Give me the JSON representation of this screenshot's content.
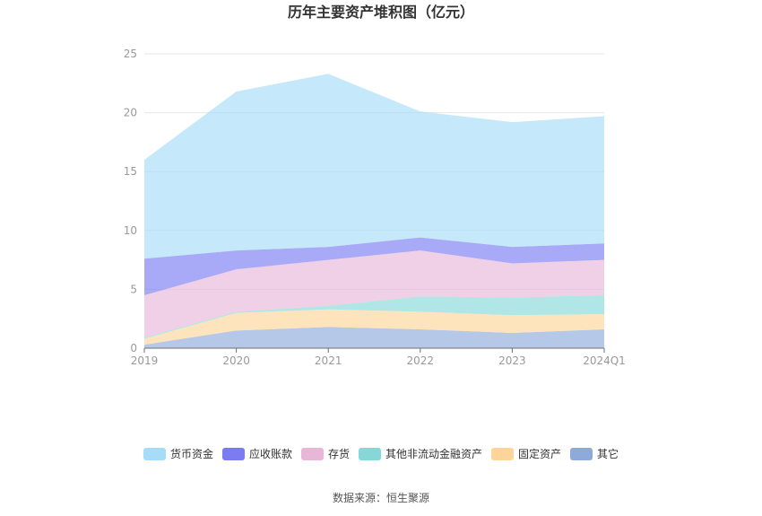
{
  "chart_data": {
    "type": "area",
    "stacked": true,
    "title": "历年主要资产堆积图（亿元）",
    "x": [
      "2019",
      "2020",
      "2021",
      "2022",
      "2023",
      "2024Q1"
    ],
    "ylim": [
      0,
      25
    ],
    "yticks": [
      "0",
      "5",
      "10",
      "15",
      "20",
      "25"
    ],
    "grid": true,
    "legend_position": "bottom",
    "series": [
      {
        "name": "其它",
        "color": "#8eaadb",
        "values": [
          0.3,
          1.5,
          1.8,
          1.6,
          1.3,
          1.6
        ]
      },
      {
        "name": "固定资产",
        "color": "#fdd59a",
        "values": [
          0.5,
          1.5,
          1.5,
          1.5,
          1.5,
          1.3
        ]
      },
      {
        "name": "其他非流动金融资产",
        "color": "#86d8d8",
        "values": [
          0.1,
          0.1,
          0.3,
          1.3,
          1.5,
          1.6
        ]
      },
      {
        "name": "存货",
        "color": "#e8b7d8",
        "values": [
          3.6,
          3.6,
          3.9,
          3.9,
          2.9,
          3.0
        ]
      },
      {
        "name": "应收账款",
        "color": "#7b7cf2",
        "values": [
          3.1,
          1.6,
          1.1,
          1.1,
          1.4,
          1.4
        ]
      },
      {
        "name": "货币资金",
        "color": "#a6dcf7",
        "values": [
          8.4,
          13.5,
          14.7,
          10.7,
          10.6,
          10.8
        ]
      }
    ],
    "legend_order": [
      "货币资金",
      "应收账款",
      "存货",
      "其他非流动金融资产",
      "固定资产",
      "其它"
    ]
  },
  "source_text": "数据来源：恒生聚源"
}
